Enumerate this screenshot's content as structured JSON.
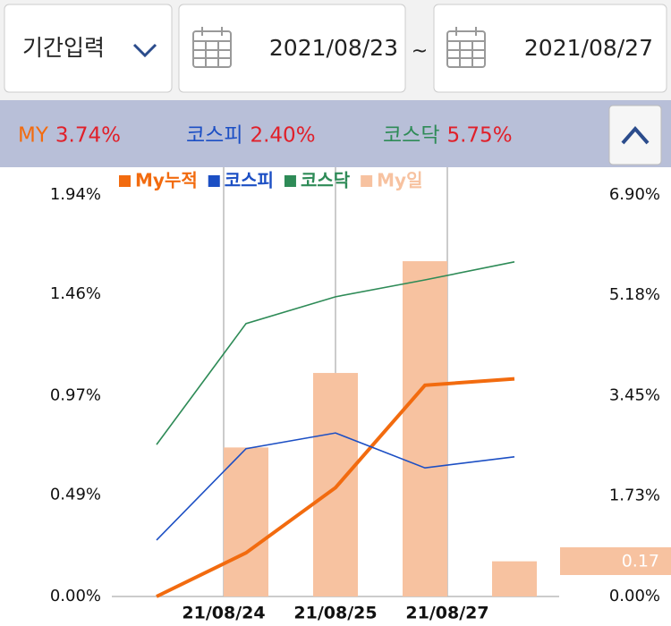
{
  "header": {
    "period_button": "기간입력",
    "start_date": "2021/08/23",
    "separator": "~",
    "end_date": "2021/08/27"
  },
  "summary": [
    {
      "name": "MY",
      "value": "3.74%",
      "color": "#f26b0f"
    },
    {
      "name": "코스피",
      "value": "2.40%",
      "color": "#1c4fc4"
    },
    {
      "name": "코스닥",
      "value": "5.75%",
      "color": "#2e8b57"
    }
  ],
  "chart_data": {
    "type": "combo",
    "categories": [
      null,
      "21/08/24",
      "21/08/25",
      "21/08/27",
      null
    ],
    "series": [
      {
        "name": "My누적",
        "type": "line",
        "axis": "y2",
        "color": "#f26b0f",
        "values": [
          0,
          0.75,
          1.87,
          3.63,
          3.74
        ]
      },
      {
        "name": "코스피",
        "type": "line",
        "axis": "y2",
        "color": "#1c4fc4",
        "values": [
          0.97,
          2.54,
          2.81,
          2.21,
          2.4
        ]
      },
      {
        "name": "코스닥",
        "type": "line",
        "axis": "y2",
        "color": "#2e8b57",
        "values": [
          2.61,
          4.69,
          5.15,
          5.44,
          5.75
        ]
      },
      {
        "name": "My일",
        "type": "bar",
        "axis": "y",
        "color": "#f7c2a0",
        "values": [
          null,
          0.72,
          1.08,
          1.62,
          0.17
        ],
        "value_labels": [
          null,
          null,
          null,
          null,
          "0.17"
        ]
      }
    ],
    "ylim": [
      0,
      1.94
    ],
    "yticks": [
      {
        "value": 0,
        "label": "0.00%"
      },
      {
        "value": 0.49,
        "label": "0.49%"
      },
      {
        "value": 0.97,
        "label": "0.97%"
      },
      {
        "value": 1.46,
        "label": "1.46%"
      },
      {
        "value": 1.94,
        "label": "1.94%"
      }
    ],
    "y2lim": [
      0,
      6.9
    ],
    "y2ticks": [
      {
        "value": 0,
        "label": "0.00%"
      },
      {
        "value": 1.73,
        "label": "1.73%"
      },
      {
        "value": 3.45,
        "label": "3.45%"
      },
      {
        "value": 5.18,
        "label": "5.18%"
      },
      {
        "value": 6.9,
        "label": "6.90%"
      }
    ],
    "grid": true
  }
}
